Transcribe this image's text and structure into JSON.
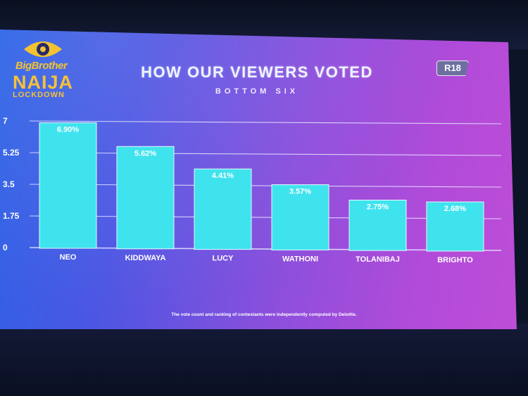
{
  "slide": {
    "logo": {
      "line1": "BigBrother",
      "line2": "NAIJA",
      "line3": "LOCKDOWN"
    },
    "title": "HOW OUR VIEWERS VOTED",
    "subtitle": "BOTTOM SIX",
    "rating": "R18",
    "footnote": "The vote count and ranking of contestants were independently computed by Deloitte."
  },
  "colors": {
    "bar_fill": "#3fe3ee",
    "bar_stroke": "#e6fbff",
    "gridline": "#e8e6ff",
    "label_text": "#ffffff",
    "logo_gold": "#f2c232"
  },
  "chart_data": {
    "type": "bar",
    "title": "HOW OUR VIEWERS VOTED",
    "subtitle": "BOTTOM SIX",
    "categories": [
      "NEO",
      "KIDDWAYA",
      "LUCY",
      "WATHONI",
      "TOLANIBAJ",
      "BRIGHTO"
    ],
    "values": [
      6.9,
      5.62,
      4.41,
      3.57,
      2.75,
      2.68
    ],
    "value_labels": [
      "6.90%",
      "5.62%",
      "4.41%",
      "3.57%",
      "2.75%",
      "2.68%"
    ],
    "yticks": [
      "7",
      "5.25",
      "3.5",
      "1.75",
      "0"
    ],
    "ytick_values": [
      7,
      5.25,
      3.5,
      1.75,
      0
    ],
    "ylim": [
      0,
      7
    ],
    "xlabel": "",
    "ylabel": "",
    "grid": true,
    "legend": "none"
  }
}
